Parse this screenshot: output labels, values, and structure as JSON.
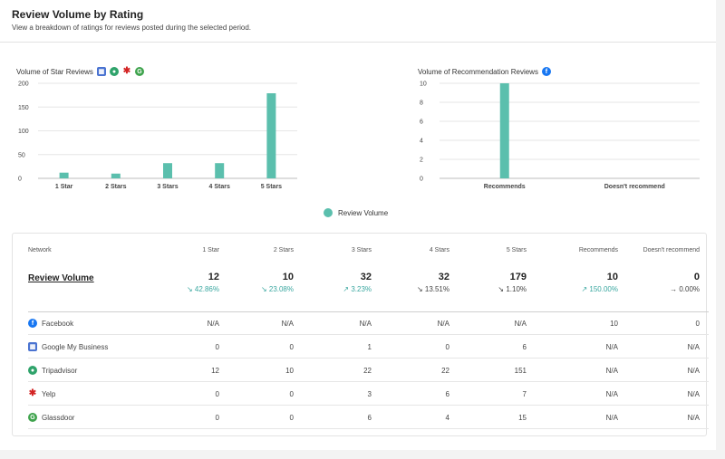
{
  "header": {
    "title": "Review Volume by Rating",
    "subtitle": "View a breakdown of ratings for reviews posted during the selected period."
  },
  "colors": {
    "bar": "#5bbfad",
    "delta": "#3aa7a0"
  },
  "star_chart_title": "Volume of Star Reviews",
  "star_chart_icons": [
    "google-my-business-icon",
    "tripadvisor-icon",
    "yelp-icon",
    "glassdoor-icon"
  ],
  "rec_chart_title": "Volume of Recommendation Reviews",
  "rec_chart_icons": [
    "facebook-icon"
  ],
  "chart_data": [
    {
      "type": "bar",
      "title": "Volume of Star Reviews",
      "categories": [
        "1 Star",
        "2 Stars",
        "3 Stars",
        "4 Stars",
        "5 Stars"
      ],
      "series": [
        {
          "name": "Review Volume",
          "values": [
            12,
            10,
            32,
            32,
            179
          ]
        }
      ],
      "ylim": [
        0,
        200
      ],
      "yticks": [
        "200",
        "150",
        "100",
        "50",
        "0"
      ],
      "grid": true
    },
    {
      "type": "bar",
      "title": "Volume of Recommendation Reviews",
      "categories": [
        "Recommends",
        "Doesn't recommend"
      ],
      "series": [
        {
          "name": "Review Volume",
          "values": [
            10,
            0
          ]
        }
      ],
      "ylim": [
        0,
        10
      ],
      "yticks": [
        "10",
        "8",
        "6",
        "4",
        "2",
        "0"
      ],
      "grid": true
    }
  ],
  "legend": {
    "label": "Review Volume"
  },
  "table": {
    "columns": [
      "Network",
      "1 Star",
      "2 Stars",
      "3 Stars",
      "4 Stars",
      "5 Stars",
      "Recommends",
      "Doesn't recommend"
    ],
    "summary": {
      "label": "Review Volume",
      "values": [
        "12",
        "10",
        "32",
        "32",
        "179",
        "10",
        "0"
      ],
      "deltas": [
        {
          "text": "↘ 42.86%",
          "kind": "down"
        },
        {
          "text": "↘ 23.08%",
          "kind": "down"
        },
        {
          "text": "↗ 3.23%",
          "kind": "up"
        },
        {
          "text": "↘ 13.51%",
          "kind": "flat"
        },
        {
          "text": "↘ 1.10%",
          "kind": "flat"
        },
        {
          "text": "↗ 150.00%",
          "kind": "up"
        },
        {
          "text": "→ 0.00%",
          "kind": "flat"
        }
      ]
    },
    "rows": [
      {
        "network": "Facebook",
        "icon": "facebook-icon",
        "values": [
          "N/A",
          "N/A",
          "N/A",
          "N/A",
          "N/A",
          "10",
          "0"
        ]
      },
      {
        "network": "Google My Business",
        "icon": "google-my-business-icon",
        "values": [
          "0",
          "0",
          "1",
          "0",
          "6",
          "N/A",
          "N/A"
        ]
      },
      {
        "network": "Tripadvisor",
        "icon": "tripadvisor-icon",
        "values": [
          "12",
          "10",
          "22",
          "22",
          "151",
          "N/A",
          "N/A"
        ]
      },
      {
        "network": "Yelp",
        "icon": "yelp-icon",
        "values": [
          "0",
          "0",
          "3",
          "6",
          "7",
          "N/A",
          "N/A"
        ]
      },
      {
        "network": "Glassdoor",
        "icon": "glassdoor-icon",
        "values": [
          "0",
          "0",
          "6",
          "4",
          "15",
          "N/A",
          "N/A"
        ]
      }
    ]
  }
}
